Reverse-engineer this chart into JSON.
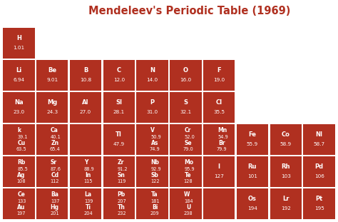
{
  "title": "Mendeleev's Periodic Table (1969)",
  "title_color": "#B03020",
  "bg_color": "#ffffff",
  "cell_color": "#B03020",
  "text_color": "#ffffff",
  "cells": [
    {
      "row": 0,
      "col": 0,
      "lines": [
        "H",
        "1.01"
      ]
    },
    {
      "row": 1,
      "col": 0,
      "lines": [
        "Li",
        "6.94"
      ]
    },
    {
      "row": 1,
      "col": 1,
      "lines": [
        "Be",
        "9.01"
      ]
    },
    {
      "row": 1,
      "col": 2,
      "lines": [
        "B",
        "10.8"
      ]
    },
    {
      "row": 1,
      "col": 3,
      "lines": [
        "C",
        "12.0"
      ]
    },
    {
      "row": 1,
      "col": 4,
      "lines": [
        "N",
        "14.0"
      ]
    },
    {
      "row": 1,
      "col": 5,
      "lines": [
        "O",
        "16.0"
      ]
    },
    {
      "row": 1,
      "col": 6,
      "lines": [
        "F",
        "19.0"
      ]
    },
    {
      "row": 2,
      "col": 0,
      "lines": [
        "Na",
        "23.0"
      ]
    },
    {
      "row": 2,
      "col": 1,
      "lines": [
        "Mg",
        "24.3"
      ]
    },
    {
      "row": 2,
      "col": 2,
      "lines": [
        "Al",
        "27.0"
      ]
    },
    {
      "row": 2,
      "col": 3,
      "lines": [
        "Sl",
        "28.1"
      ]
    },
    {
      "row": 2,
      "col": 4,
      "lines": [
        "P",
        "31.0"
      ]
    },
    {
      "row": 2,
      "col": 5,
      "lines": [
        "S",
        "32.1"
      ]
    },
    {
      "row": 2,
      "col": 6,
      "lines": [
        "Cl",
        "35.5"
      ]
    },
    {
      "row": 3,
      "col": 0,
      "lines": [
        "k",
        "39.1",
        "Cu",
        "63.5"
      ]
    },
    {
      "row": 3,
      "col": 1,
      "lines": [
        "Ca",
        "40.1",
        "Zn",
        "65.4"
      ]
    },
    {
      "row": 3,
      "col": 2,
      "lines": [
        "",
        ""
      ]
    },
    {
      "row": 3,
      "col": 3,
      "lines": [
        "Tl",
        "47.9"
      ]
    },
    {
      "row": 3,
      "col": 4,
      "lines": [
        "V",
        "50.9",
        "As",
        "74.9"
      ]
    },
    {
      "row": 3,
      "col": 5,
      "lines": [
        "Cr",
        "52.0",
        "Se",
        "79.0"
      ]
    },
    {
      "row": 3,
      "col": 6,
      "lines": [
        "Mn",
        "54.9",
        "Br",
        "79.9"
      ]
    },
    {
      "row": 3,
      "col": 7,
      "lines": [
        "Fe",
        "55.9"
      ]
    },
    {
      "row": 3,
      "col": 8,
      "lines": [
        "Co",
        "58.9"
      ]
    },
    {
      "row": 3,
      "col": 9,
      "lines": [
        "Nl",
        "58.7"
      ]
    },
    {
      "row": 4,
      "col": 0,
      "lines": [
        "Rb",
        "85.5",
        "Ag",
        "108"
      ]
    },
    {
      "row": 4,
      "col": 1,
      "lines": [
        "Sr",
        "87.6",
        "Cd",
        "112"
      ]
    },
    {
      "row": 4,
      "col": 2,
      "lines": [
        "Y",
        "88.9",
        "In",
        "115"
      ]
    },
    {
      "row": 4,
      "col": 3,
      "lines": [
        "Zr",
        "91.2",
        "Sn",
        "119"
      ]
    },
    {
      "row": 4,
      "col": 4,
      "lines": [
        "Nb",
        "92.9",
        "Sb",
        "122"
      ]
    },
    {
      "row": 4,
      "col": 5,
      "lines": [
        "Mo",
        "95.9",
        "Te",
        "128"
      ]
    },
    {
      "row": 4,
      "col": 6,
      "lines": [
        "I",
        "127"
      ]
    },
    {
      "row": 4,
      "col": 7,
      "lines": [
        "Ru",
        "101"
      ]
    },
    {
      "row": 4,
      "col": 8,
      "lines": [
        "Rh",
        "103"
      ]
    },
    {
      "row": 4,
      "col": 9,
      "lines": [
        "Pd",
        "106"
      ]
    },
    {
      "row": 5,
      "col": 0,
      "lines": [
        "Ce",
        "133",
        "Au",
        "197"
      ]
    },
    {
      "row": 5,
      "col": 1,
      "lines": [
        "Ba",
        "137",
        "Hg",
        "201"
      ]
    },
    {
      "row": 5,
      "col": 2,
      "lines": [
        "La",
        "139",
        "Ti",
        "204"
      ]
    },
    {
      "row": 5,
      "col": 3,
      "lines": [
        "Pb",
        "207",
        "Th",
        "232"
      ]
    },
    {
      "row": 5,
      "col": 4,
      "lines": [
        "Ta",
        "181",
        "Bi",
        "209"
      ]
    },
    {
      "row": 5,
      "col": 5,
      "lines": [
        "W",
        "184",
        "U",
        "238"
      ]
    },
    {
      "row": 5,
      "col": 6,
      "lines": [
        "",
        ""
      ]
    },
    {
      "row": 5,
      "col": 7,
      "lines": [
        "Os",
        "194"
      ]
    },
    {
      "row": 5,
      "col": 8,
      "lines": [
        "Lr",
        "192"
      ]
    },
    {
      "row": 5,
      "col": 9,
      "lines": [
        "Pt",
        "195"
      ]
    }
  ]
}
